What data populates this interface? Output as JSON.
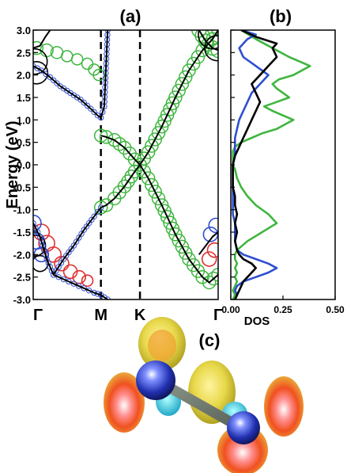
{
  "panels": {
    "a_label": "(a)",
    "b_label": "(b)",
    "c_label": "(c)"
  },
  "chart_data": [
    {
      "type": "line",
      "panel": "(a)",
      "subtype": "band structure with orbital-weight circles",
      "ylabel": "Energy (eV)",
      "ylim": [
        -3.0,
        3.0
      ],
      "yticks": [
        "3.0",
        "2.5",
        "2.0",
        "1.5",
        "1.0",
        "0.5",
        "0.0",
        "-0.5",
        "-1.0",
        "-1.5",
        "-2.0",
        "-2.5",
        "-3.0"
      ],
      "xticks": [
        "Γ",
        "M",
        "K",
        "Γ"
      ],
      "kpath": [
        0,
        1,
        1.577,
        2.732
      ],
      "vertical_lines": [
        "M",
        "K"
      ],
      "colors": {
        "band": "#000000",
        "green": "#3fb63f",
        "blue": "#2f4fd0",
        "red": "#e03030",
        "marker": "#d04848"
      },
      "series": [
        {
          "role": "cone-upper",
          "x": [
            1.0,
            1.08,
            1.2,
            1.35,
            1.5,
            1.577,
            1.7,
            1.9,
            2.1,
            2.3,
            2.5,
            2.65,
            2.732
          ],
          "y": [
            0.65,
            0.62,
            0.55,
            0.38,
            0.12,
            0.0,
            0.28,
            0.85,
            1.5,
            2.1,
            2.55,
            2.8,
            3.0
          ]
        },
        {
          "role": "cone-lower",
          "x": [
            1.0,
            1.08,
            1.2,
            1.35,
            1.5,
            1.577,
            1.7,
            1.9,
            2.1,
            2.3,
            2.5,
            2.6,
            2.732
          ],
          "y": [
            -0.95,
            -0.9,
            -0.75,
            -0.48,
            -0.15,
            0.0,
            -0.3,
            -0.9,
            -1.55,
            -2.1,
            -2.5,
            -2.62,
            -2.45
          ]
        },
        {
          "role": "dispersive-upper",
          "x": [
            0.0,
            0.12,
            0.25,
            0.4,
            0.55,
            0.7,
            0.85,
            0.95,
            1.0,
            1.05,
            1.1
          ],
          "y": [
            2.2,
            2.1,
            1.95,
            1.75,
            1.6,
            1.45,
            1.25,
            1.1,
            1.05,
            1.3,
            3.0
          ]
        },
        {
          "role": "dispersive-lower",
          "x": [
            0.0,
            0.1,
            0.2,
            0.3,
            0.45,
            0.6,
            0.75,
            0.9,
            1.0
          ],
          "y": [
            -1.3,
            -1.6,
            -2.1,
            -2.45,
            -2.1,
            -1.8,
            -1.45,
            -1.15,
            -0.95
          ]
        },
        {
          "role": "bottom-branch",
          "x": [
            0.3,
            0.45,
            0.6,
            0.75,
            0.9,
            1.0,
            1.05,
            1.1
          ],
          "y": [
            -2.45,
            -2.55,
            -2.65,
            -2.75,
            -2.85,
            -2.9,
            -2.95,
            -3.0
          ]
        },
        {
          "role": "gamma-upper-left",
          "x": [
            0.0,
            0.1,
            0.18,
            0.25
          ],
          "y": [
            2.6,
            2.65,
            2.85,
            3.0
          ]
        },
        {
          "role": "gamma-upper-right",
          "x": [
            2.45,
            2.55,
            2.65,
            2.732
          ],
          "y": [
            3.0,
            2.75,
            2.6,
            2.55
          ]
        },
        {
          "role": "gamma-right-lower",
          "x": [
            2.45,
            2.55,
            2.65,
            2.732
          ],
          "y": [
            -2.0,
            -1.8,
            -1.6,
            -1.5
          ]
        }
      ],
      "weights": {
        "black_circles": [
          {
            "x": 0.02,
            "y": 2.3,
            "s": 1.6
          },
          {
            "x": 0.05,
            "y": 2.05,
            "s": 1.4
          },
          {
            "x": 2.65,
            "y": 2.9,
            "s": 1.8
          },
          {
            "x": 2.72,
            "y": 2.6,
            "s": 1.6
          },
          {
            "x": 0.03,
            "y": -1.8,
            "s": 1.3
          },
          {
            "x": 0.1,
            "y": -2.2,
            "s": 1.0
          }
        ],
        "blue_circles": [
          {
            "x": 0.0,
            "y": -1.3,
            "s": 1.0
          },
          {
            "x": 0.05,
            "y": -1.7,
            "s": 1.0
          },
          {
            "x": 0.12,
            "y": -2.0,
            "s": 0.9
          },
          {
            "x": 2.62,
            "y": -1.55,
            "s": 0.9
          },
          {
            "x": 2.7,
            "y": -1.35,
            "s": 0.9
          }
        ],
        "red_circles": [
          {
            "x": 0.12,
            "y": -1.5,
            "s": 1.0
          },
          {
            "x": 0.2,
            "y": -1.75,
            "s": 1.0
          },
          {
            "x": 0.3,
            "y": -2.0,
            "s": 0.95
          },
          {
            "x": 0.42,
            "y": -2.2,
            "s": 0.9
          },
          {
            "x": 0.55,
            "y": -2.38,
            "s": 0.85
          },
          {
            "x": 0.68,
            "y": -2.5,
            "s": 0.8
          },
          {
            "x": 0.8,
            "y": -2.58,
            "s": 0.7
          },
          {
            "x": 2.6,
            "y": -2.1,
            "s": 0.9
          },
          {
            "x": 2.68,
            "y": -1.9,
            "s": 0.9
          }
        ],
        "green_circles_upper": [
          {
            "x": 0.05,
            "y": 2.6,
            "s": 0.8
          },
          {
            "x": 0.2,
            "y": 2.55,
            "s": 0.8
          },
          {
            "x": 0.35,
            "y": 2.5,
            "s": 0.75
          },
          {
            "x": 0.5,
            "y": 2.42,
            "s": 0.7
          },
          {
            "x": 0.65,
            "y": 2.35,
            "s": 0.7
          },
          {
            "x": 0.8,
            "y": 2.25,
            "s": 0.7
          },
          {
            "x": 0.9,
            "y": 2.12,
            "s": 0.7
          },
          {
            "x": 0.97,
            "y": 2.0,
            "s": 0.7
          }
        ]
      },
      "dos": [],
      "tick_marks": []
    },
    {
      "type": "line",
      "panel": "(b)",
      "xlabel": "DOS",
      "xlim": [
        0.0,
        0.5
      ],
      "xticks": [
        "0.00",
        "0.25",
        "0.50"
      ],
      "ylim": [
        -3.0,
        3.0
      ],
      "series": [
        {
          "color": "#3fb63f",
          "x": [
            0.01,
            0.02,
            0.01,
            0.02,
            0.03,
            0.02,
            0.03,
            0.02,
            0.03,
            0.02,
            0.02,
            0.03,
            0.08,
            0.15,
            0.22,
            0.18,
            0.12,
            0.08,
            0.05,
            0.03,
            0.02,
            0.01,
            0.01,
            0.01,
            0.01,
            0.02,
            0.05,
            0.1,
            0.15,
            0.22,
            0.26,
            0.3,
            0.25,
            0.2,
            0.16,
            0.22,
            0.28,
            0.25,
            0.22,
            0.2,
            0.23,
            0.3,
            0.38,
            0.28,
            0.2,
            0.12,
            0.05
          ],
          "y": [
            -3.0,
            -2.9,
            -2.8,
            -2.7,
            -2.6,
            -2.5,
            -2.4,
            -2.3,
            -2.2,
            -2.1,
            -2.0,
            -1.9,
            -1.7,
            -1.5,
            -1.3,
            -1.1,
            -0.9,
            -0.7,
            -0.5,
            -0.3,
            -0.1,
            0.0,
            0.1,
            0.2,
            0.3,
            0.4,
            0.5,
            0.6,
            0.7,
            0.8,
            0.9,
            1.0,
            1.1,
            1.2,
            1.3,
            1.4,
            1.5,
            1.6,
            1.7,
            1.8,
            1.9,
            2.0,
            2.2,
            2.4,
            2.6,
            2.8,
            3.0
          ]
        },
        {
          "color": "#2f4fd0",
          "x": [
            0.02,
            0.03,
            0.02,
            0.03,
            0.06,
            0.12,
            0.18,
            0.22,
            0.18,
            0.12,
            0.06,
            0.03,
            0.02,
            0.02,
            0.02,
            0.01,
            0.01,
            0.01,
            0.01,
            0.01,
            0.01,
            0.01,
            0.02,
            0.02,
            0.02,
            0.03,
            0.04,
            0.06,
            0.08,
            0.1,
            0.14,
            0.18,
            0.12,
            0.06,
            0.04,
            0.08,
            0.12,
            0.05
          ],
          "y": [
            -3.0,
            -2.9,
            -2.8,
            -2.7,
            -2.6,
            -2.5,
            -2.4,
            -2.3,
            -2.2,
            -2.1,
            -2.0,
            -1.9,
            -1.7,
            -1.5,
            -1.3,
            -1.1,
            -0.9,
            -0.7,
            -0.5,
            -0.3,
            -0.1,
            0.0,
            0.2,
            0.4,
            0.6,
            0.8,
            1.0,
            1.2,
            1.4,
            1.6,
            1.8,
            2.0,
            2.2,
            2.4,
            2.6,
            2.8,
            2.9,
            3.0
          ]
        },
        {
          "color": "#000000",
          "x": [
            0.02,
            0.03,
            0.04,
            0.05,
            0.06,
            0.08,
            0.1,
            0.12,
            0.1,
            0.06,
            0.04,
            0.03,
            0.02,
            0.03,
            0.02,
            0.03,
            0.02,
            0.02,
            0.01,
            0.01,
            0.01,
            0.01,
            0.02,
            0.04,
            0.06,
            0.08,
            0.1,
            0.12,
            0.14,
            0.12,
            0.1,
            0.14,
            0.18,
            0.22,
            0.2,
            0.22,
            0.12,
            0.05
          ],
          "y": [
            -3.0,
            -2.9,
            -2.8,
            -2.7,
            -2.6,
            -2.5,
            -2.4,
            -2.3,
            -2.2,
            -2.1,
            -2.0,
            -1.9,
            -1.7,
            -1.5,
            -1.3,
            -1.1,
            -0.9,
            -0.7,
            -0.5,
            -0.3,
            -0.1,
            0.0,
            0.2,
            0.4,
            0.6,
            0.8,
            1.0,
            1.2,
            1.4,
            1.6,
            1.8,
            2.0,
            2.2,
            2.4,
            2.6,
            2.7,
            2.85,
            3.0
          ]
        }
      ]
    }
  ]
}
